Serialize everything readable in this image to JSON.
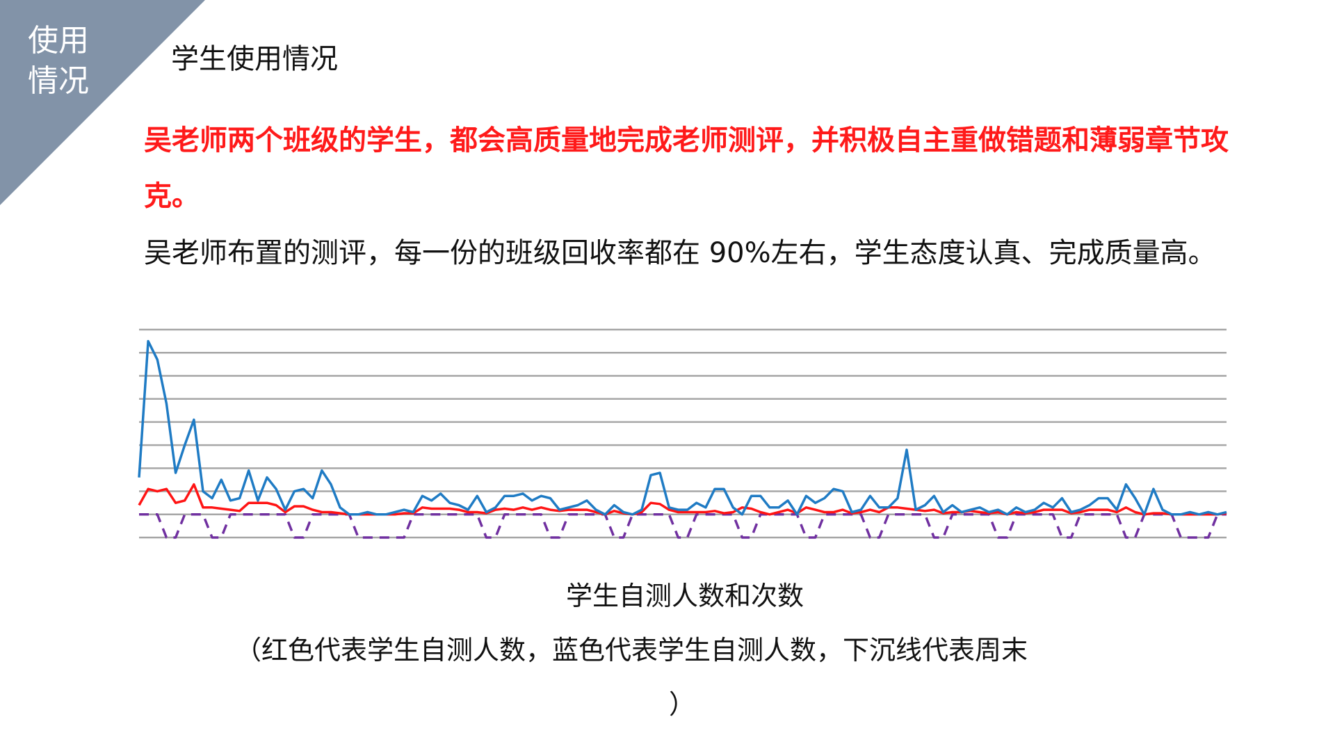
{
  "slide": {
    "corner_label_line1": "使用",
    "corner_label_line2": "情况",
    "title": "学生使用情况",
    "red_paragraph": "吴老师两个班级的学生，都会高质量地完成老师测评，并积极自主重做错题和薄弱章节攻克。",
    "black_paragraph": " 吴老师布置的测评，每一份的班级回收率都在 90%左右，学生态度认真、完成质量高。",
    "caption": "学生自测人数和次数",
    "note": "（红色代表学生自测人数，蓝色代表学生自测人数，下沉线代表周末",
    "note_end": "）"
  },
  "colors": {
    "corner": "#8293a8",
    "red_text": "#ff1a1a",
    "blue_series": "#1f7bc4",
    "red_series": "#ff1414",
    "weekend_line": "#7030a0",
    "grid": "#a6a6a6"
  },
  "chart_data": {
    "type": "line",
    "title": "学生自测人数和次数",
    "xlabel": "",
    "ylabel": "",
    "ylim": [
      -1,
      8
    ],
    "grid": true,
    "axis_labels_shown": false,
    "series": [
      {
        "color": "#1f7bc4",
        "values": [
          1.6,
          7.5,
          6.7,
          4.8,
          1.8,
          3.0,
          4.1,
          1.0,
          0.7,
          1.5,
          0.6,
          0.7,
          1.9,
          0.6,
          1.6,
          1.1,
          0.2,
          1.0,
          1.1,
          0.7,
          1.9,
          1.3,
          0.3,
          0,
          0,
          0.1,
          0,
          0,
          0.1,
          0.2,
          0.1,
          0.8,
          0.6,
          0.9,
          0.5,
          0.4,
          0.2,
          0.8,
          0.1,
          0.3,
          0.8,
          0.8,
          0.9,
          0.6,
          0.8,
          0.7,
          0.2,
          0.3,
          0.4,
          0.6,
          0.2,
          0,
          0.4,
          0.1,
          0,
          0.2,
          1.7,
          1.8,
          0.3,
          0.2,
          0.2,
          0.5,
          0.3,
          1.1,
          1.1,
          0.3,
          0,
          0.8,
          0.8,
          0.3,
          0.3,
          0.6,
          0,
          0.8,
          0.5,
          0.7,
          1.1,
          1.0,
          0.1,
          0.2,
          0.8,
          0.3,
          0.3,
          0.7,
          2.8,
          0.2,
          0.4,
          0.8,
          0.1,
          0.4,
          0.1,
          0.2,
          0.3,
          0.1,
          0.2,
          0,
          0.3,
          0.1,
          0.2,
          0.5,
          0.3,
          0.7,
          0.1,
          0.2,
          0.4,
          0.7,
          0.7,
          0.2,
          1.3,
          0.7,
          0,
          1.1,
          0.2,
          0,
          0,
          0.1,
          0,
          0.1,
          0,
          0.1
        ]
      },
      {
        "color": "#ff1414",
        "values": [
          0.4,
          1.1,
          1.0,
          1.1,
          0.5,
          0.6,
          1.3,
          0.3,
          0.3,
          0.25,
          0.2,
          0.15,
          0.5,
          0.5,
          0.5,
          0.4,
          0.1,
          0.35,
          0.35,
          0.2,
          0.1,
          0.1,
          0.05,
          0,
          0,
          0,
          0,
          0,
          0,
          0.05,
          0.05,
          0.3,
          0.25,
          0.25,
          0.25,
          0.2,
          0.1,
          0.1,
          0.05,
          0.2,
          0.25,
          0.2,
          0.3,
          0.2,
          0.3,
          0.2,
          0.15,
          0.2,
          0.2,
          0.2,
          0.1,
          0,
          0.15,
          0.05,
          0,
          0.1,
          0.5,
          0.45,
          0.2,
          0.1,
          0.1,
          0.1,
          0.1,
          0.15,
          0.05,
          0.1,
          0.3,
          0.25,
          0.1,
          0,
          0.1,
          0.2,
          0.05,
          0.3,
          0.2,
          0.1,
          0.1,
          0.2,
          0.05,
          0.1,
          0.2,
          0.1,
          0.3,
          0.3,
          0.25,
          0.2,
          0.15,
          0.2,
          0.05,
          0.1,
          0.1,
          0.15,
          0.1,
          0.05,
          0.1,
          0,
          0.1,
          0.05,
          0.1,
          0.2,
          0.2,
          0.2,
          0.05,
          0.1,
          0.2,
          0.2,
          0.2,
          0.1,
          0.3,
          0.1,
          0,
          0.05,
          0.05,
          0,
          0,
          0,
          0,
          0,
          0,
          0.05
        ]
      },
      {
        "color": "#7030a0",
        "style": "dashed",
        "weekend_indices": [
          3,
          4,
          8,
          9,
          17,
          18,
          24,
          25,
          26,
          27,
          28,
          29,
          38,
          39,
          45,
          46,
          52,
          53,
          59,
          60,
          66,
          67,
          73,
          74,
          80,
          81,
          87,
          88,
          94,
          95,
          101,
          102,
          108,
          109,
          114,
          115,
          116,
          117
        ],
        "weekday_value": 0,
        "weekend_value": -1
      }
    ]
  }
}
